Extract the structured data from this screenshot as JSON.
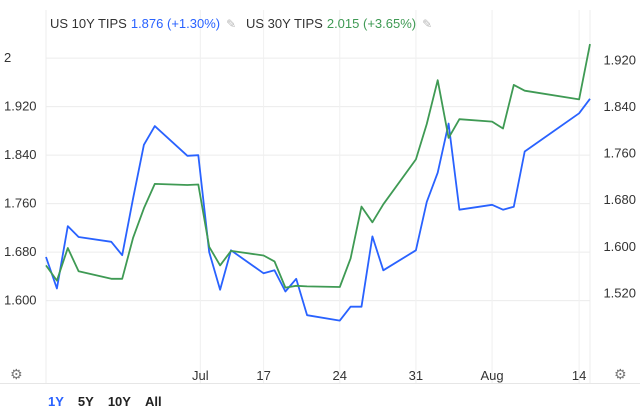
{
  "legend": [
    {
      "name": "US 10Y TIPS",
      "value": "1.876 (+1.30%)",
      "color": "#2962ff"
    },
    {
      "name": "US 30Y TIPS",
      "value": "2.015 (+3.65%)",
      "color": "#3f9a54"
    }
  ],
  "icons": {
    "edit": "pencil-icon",
    "settings": "gear-icon"
  },
  "ranges": [
    {
      "label": "1Y",
      "active": true
    },
    {
      "label": "5Y",
      "active": false
    },
    {
      "label": "10Y",
      "active": false
    },
    {
      "label": "All",
      "active": false
    }
  ],
  "chart_data": {
    "type": "line",
    "x_ticks": [
      "Jul",
      "17",
      "24",
      "31",
      "Aug",
      "14"
    ],
    "left_axis": {
      "ticks": [
        "2",
        "1.920",
        "1.840",
        "1.760",
        "1.680",
        "1.600"
      ],
      "range": [
        1.535,
        2.03
      ]
    },
    "right_axis": {
      "ticks": [
        "1.920",
        "1.840",
        "1.760",
        "1.680",
        "1.600",
        "1.520"
      ],
      "range": [
        1.44,
        1.955
      ]
    },
    "grid": true,
    "series": [
      {
        "name": "US 10Y TIPS",
        "axis": "left",
        "color": "#2962ff",
        "points": [
          [
            "06-17",
            1.672
          ],
          [
            "06-18",
            1.62
          ],
          [
            "06-19",
            1.723
          ],
          [
            "06-20",
            1.705
          ],
          [
            "06-23",
            1.697
          ],
          [
            "06-24",
            1.675
          ],
          [
            "06-25",
            1.768
          ],
          [
            "06-26",
            1.857
          ],
          [
            "06-27",
            1.888
          ],
          [
            "06-30",
            1.839
          ],
          [
            "07-01",
            1.84
          ],
          [
            "07-02",
            1.68
          ],
          [
            "07-03",
            1.618
          ],
          [
            "07-04",
            1.683
          ],
          [
            "07-07",
            1.645
          ],
          [
            "07-08",
            1.65
          ],
          [
            "07-09",
            1.615
          ],
          [
            "07-10",
            1.636
          ],
          [
            "07-11",
            1.576
          ],
          [
            "07-14",
            1.567
          ],
          [
            "07-15",
            1.59
          ],
          [
            "07-16",
            1.59
          ],
          [
            "07-17",
            1.706
          ],
          [
            "07-18",
            1.65
          ],
          [
            "07-21",
            1.683
          ],
          [
            "07-22",
            1.763
          ],
          [
            "07-23",
            1.811
          ],
          [
            "07-24",
            1.892
          ],
          [
            "07-25",
            1.75
          ],
          [
            "07-28",
            1.758
          ],
          [
            "07-29",
            1.75
          ],
          [
            "07-30",
            1.755
          ],
          [
            "07-31",
            1.846
          ],
          [
            "08-05",
            1.909
          ],
          [
            "08-06",
            1.933
          ]
        ]
      },
      {
        "name": "US 30Y TIPS",
        "axis": "right",
        "color": "#3f9a54",
        "points": [
          [
            "06-17",
            1.568
          ],
          [
            "06-18",
            1.542
          ],
          [
            "06-19",
            1.598
          ],
          [
            "06-20",
            1.558
          ],
          [
            "06-23",
            1.545
          ],
          [
            "06-24",
            1.545
          ],
          [
            "06-25",
            1.615
          ],
          [
            "06-26",
            1.666
          ],
          [
            "06-27",
            1.708
          ],
          [
            "06-30",
            1.706
          ],
          [
            "07-01",
            1.707
          ],
          [
            "07-02",
            1.6
          ],
          [
            "07-03",
            1.568
          ],
          [
            "07-04",
            1.593
          ],
          [
            "07-07",
            1.585
          ],
          [
            "07-08",
            1.575
          ],
          [
            "07-09",
            1.53
          ],
          [
            "07-10",
            1.533
          ],
          [
            "07-11",
            1.532
          ],
          [
            "07-14",
            1.531
          ],
          [
            "07-15",
            1.58
          ],
          [
            "07-16",
            1.669
          ],
          [
            "07-17",
            1.642
          ],
          [
            "07-18",
            1.673
          ],
          [
            "07-21",
            1.75
          ],
          [
            "07-22",
            1.811
          ],
          [
            "07-23",
            1.886
          ],
          [
            "07-24",
            1.787
          ],
          [
            "07-25",
            1.819
          ],
          [
            "07-28",
            1.815
          ],
          [
            "07-29",
            1.803
          ],
          [
            "07-30",
            1.878
          ],
          [
            "07-31",
            1.868
          ],
          [
            "08-05",
            1.853
          ],
          [
            "08-06",
            1.948
          ]
        ]
      }
    ]
  }
}
